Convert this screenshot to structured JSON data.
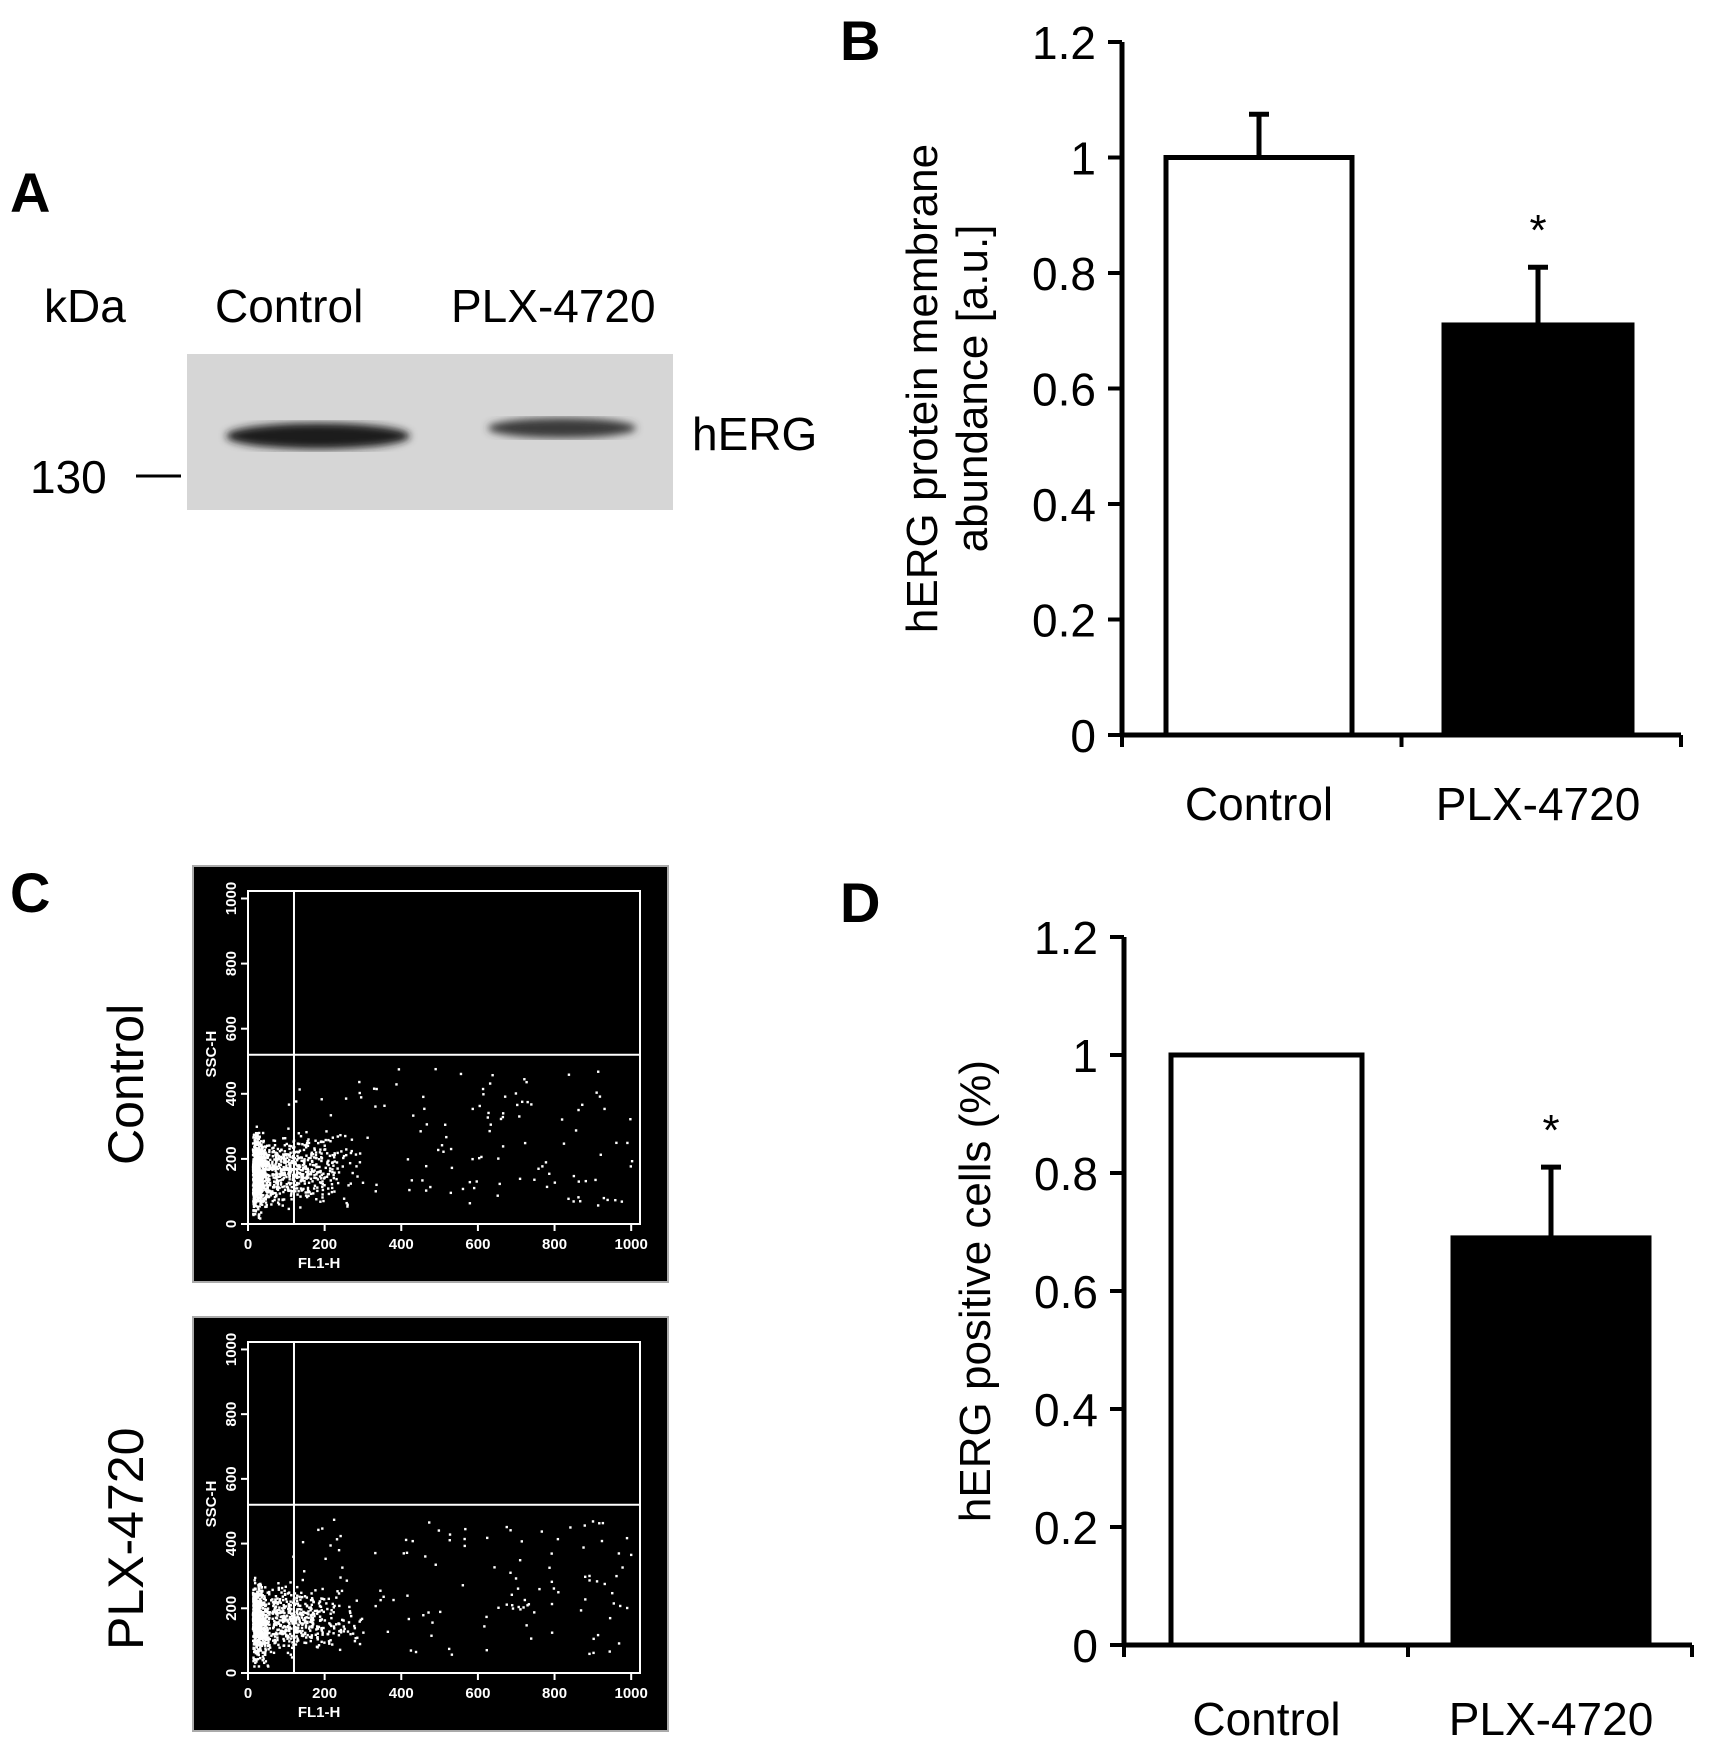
{
  "panels": {
    "a": {
      "letter": "A",
      "kda_label": "kDa",
      "lane_labels": [
        "Control",
        "PLX-4720"
      ],
      "band_label": "hERG",
      "marker_label": "130"
    },
    "b": {
      "letter": "B"
    },
    "c": {
      "letter": "C",
      "row_labels": [
        "Control",
        "PLX-4720"
      ]
    },
    "d": {
      "letter": "D"
    }
  },
  "chart_data": [
    {
      "id": "b",
      "type": "bar",
      "title": "",
      "categories": [
        "Control",
        "PLX-4720"
      ],
      "values": [
        1.0,
        0.71
      ],
      "error_upper": [
        0.075,
        0.1
      ],
      "bar_colors": [
        "#ffffff",
        "#000000"
      ],
      "significance": [
        "",
        "*"
      ],
      "xlabel": "",
      "ylabel_lines": [
        "hERG protein membrane",
        "abundance [a.u.]"
      ],
      "ylim": [
        0,
        1.2
      ],
      "yticks": [
        "0",
        "0.2",
        "0.4",
        "0.6",
        "0.8",
        "1",
        "1.2"
      ],
      "grid": false
    },
    {
      "id": "d",
      "type": "bar",
      "title": "",
      "categories": [
        "Control",
        "PLX-4720"
      ],
      "values": [
        1.0,
        0.69
      ],
      "error_upper": [
        0.0,
        0.12
      ],
      "bar_colors": [
        "#ffffff",
        "#000000"
      ],
      "significance": [
        "",
        "*"
      ],
      "xlabel": "",
      "ylabel_lines": [
        "hERG positive cells (%)"
      ],
      "ylim": [
        0,
        1.2
      ],
      "yticks": [
        "0",
        "0.2",
        "0.4",
        "0.6",
        "0.8",
        "1",
        "1.2"
      ],
      "grid": false
    },
    {
      "id": "c",
      "type": "scatter",
      "plots": [
        {
          "name": "Control",
          "xlabel": "FL1-H",
          "ylabel": "SSC-H",
          "xlim": [
            0,
            1023
          ],
          "ylim": [
            0,
            1023
          ],
          "gate_x": 120,
          "gate_y": 520,
          "xticks": [
            "0",
            "200",
            "400",
            "600",
            "800",
            "1000"
          ],
          "yticks": [
            "0",
            "200",
            "400",
            "600",
            "800",
            "1000"
          ]
        },
        {
          "name": "PLX-4720",
          "xlabel": "FL1-H",
          "ylabel": "SSC-H",
          "xlim": [
            0,
            1023
          ],
          "ylim": [
            0,
            1023
          ],
          "gate_x": 120,
          "gate_y": 520,
          "xticks": [
            "0",
            "200",
            "400",
            "600",
            "800",
            "1000"
          ],
          "yticks": [
            "0",
            "200",
            "400",
            "600",
            "800",
            "1000"
          ]
        }
      ]
    }
  ]
}
